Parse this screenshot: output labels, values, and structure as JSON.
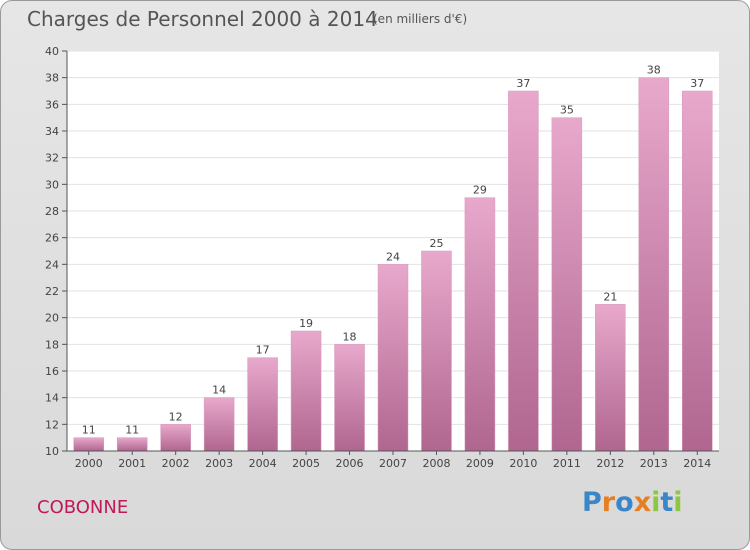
{
  "header": {
    "title": "Charges de Personnel 2000 à 2014",
    "unit": "(en milliers d'€)"
  },
  "footer": {
    "commune": "COBONNE",
    "logo_text": "Proxiti",
    "logo_colors": [
      "#3a86c8",
      "#e67e22",
      "#3a86c8",
      "#e67e22",
      "#8dc63f",
      "#3a86c8",
      "#8dc63f"
    ]
  },
  "chart_data": {
    "type": "bar",
    "title": "Charges de Personnel 2000 à 2014",
    "subtitle": "(en milliers d'€)",
    "categories": [
      "2000",
      "2001",
      "2002",
      "2003",
      "2004",
      "2005",
      "2006",
      "2007",
      "2008",
      "2009",
      "2010",
      "2011",
      "2012",
      "2013",
      "2014"
    ],
    "values": [
      11,
      11,
      12,
      14,
      17,
      19,
      18,
      24,
      25,
      29,
      37,
      35,
      21,
      38,
      37
    ],
    "ylim": [
      10,
      40
    ],
    "yticks": [
      10,
      12,
      14,
      16,
      18,
      20,
      22,
      24,
      26,
      28,
      30,
      32,
      34,
      36,
      38,
      40
    ],
    "grid": true,
    "bar_color_top": "#e8a8cc",
    "bar_color_bottom": "#b0668f"
  }
}
